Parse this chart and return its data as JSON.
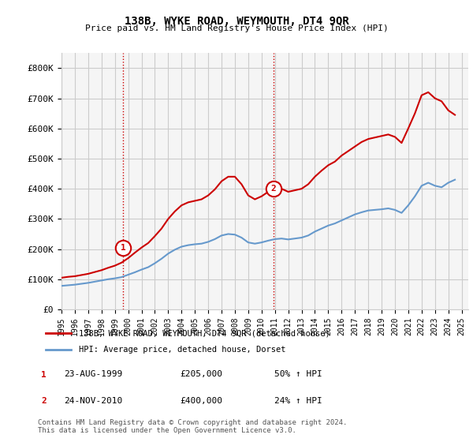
{
  "title": "138B, WYKE ROAD, WEYMOUTH, DT4 9QR",
  "subtitle": "Price paid vs. HM Land Registry's House Price Index (HPI)",
  "legend_line1": "138B, WYKE ROAD, WEYMOUTH, DT4 9QR (detached house)",
  "legend_line2": "HPI: Average price, detached house, Dorset",
  "footnote": "Contains HM Land Registry data © Crown copyright and database right 2024.\nThis data is licensed under the Open Government Licence v3.0.",
  "sale1_label": "1",
  "sale1_date": "23-AUG-1999",
  "sale1_price": "£205,000",
  "sale1_hpi": "50% ↑ HPI",
  "sale2_label": "2",
  "sale2_date": "24-NOV-2010",
  "sale2_price": "£400,000",
  "sale2_hpi": "24% ↑ HPI",
  "red_color": "#cc0000",
  "blue_color": "#6699cc",
  "sale_marker_color": "#cc0000",
  "grid_color": "#cccccc",
  "background_color": "#ffffff",
  "plot_bg_color": "#f5f5f5",
  "ylim": [
    0,
    850000
  ],
  "yticks": [
    0,
    100000,
    200000,
    300000,
    400000,
    500000,
    600000,
    700000,
    800000
  ],
  "ytick_labels": [
    "£0",
    "£100K",
    "£200K",
    "£300K",
    "£400K",
    "£500K",
    "£600K",
    "£700K",
    "£800K"
  ],
  "xmin": 1995.0,
  "xmax": 2025.5,
  "xtick_years": [
    1995,
    1996,
    1997,
    1998,
    1999,
    2000,
    2001,
    2002,
    2003,
    2004,
    2005,
    2006,
    2007,
    2008,
    2009,
    2010,
    2011,
    2012,
    2013,
    2014,
    2015,
    2016,
    2017,
    2018,
    2019,
    2020,
    2021,
    2022,
    2023,
    2024,
    2025
  ],
  "sale1_x": 1999.64,
  "sale1_y": 205000,
  "sale2_x": 2010.9,
  "sale2_y": 400000,
  "hpi_x": [
    1995.0,
    1995.5,
    1996.0,
    1996.5,
    1997.0,
    1997.5,
    1998.0,
    1998.5,
    1999.0,
    1999.5,
    2000.0,
    2000.5,
    2001.0,
    2001.5,
    2002.0,
    2002.5,
    2003.0,
    2003.5,
    2004.0,
    2004.5,
    2005.0,
    2005.5,
    2006.0,
    2006.5,
    2007.0,
    2007.5,
    2008.0,
    2008.5,
    2009.0,
    2009.5,
    2010.0,
    2010.5,
    2011.0,
    2011.5,
    2012.0,
    2012.5,
    2013.0,
    2013.5,
    2014.0,
    2014.5,
    2015.0,
    2015.5,
    2016.0,
    2016.5,
    2017.0,
    2017.5,
    2018.0,
    2018.5,
    2019.0,
    2019.5,
    2020.0,
    2020.5,
    2021.0,
    2021.5,
    2022.0,
    2022.5,
    2023.0,
    2023.5,
    2024.0,
    2024.5
  ],
  "hpi_y": [
    78000,
    80000,
    82000,
    85000,
    88000,
    92000,
    96000,
    100000,
    103000,
    107000,
    115000,
    123000,
    132000,
    140000,
    153000,
    168000,
    185000,
    198000,
    208000,
    213000,
    216000,
    218000,
    224000,
    233000,
    245000,
    250000,
    248000,
    238000,
    222000,
    218000,
    222000,
    228000,
    233000,
    235000,
    232000,
    235000,
    238000,
    245000,
    258000,
    268000,
    278000,
    285000,
    295000,
    305000,
    315000,
    322000,
    328000,
    330000,
    332000,
    335000,
    330000,
    320000,
    345000,
    375000,
    410000,
    420000,
    410000,
    405000,
    420000,
    430000
  ],
  "red_x": [
    1995.0,
    1995.5,
    1996.0,
    1996.5,
    1997.0,
    1997.5,
    1998.0,
    1998.5,
    1999.0,
    1999.5,
    2000.0,
    2000.5,
    2001.0,
    2001.5,
    2002.0,
    2002.5,
    2003.0,
    2003.5,
    2004.0,
    2004.5,
    2005.0,
    2005.5,
    2006.0,
    2006.5,
    2007.0,
    2007.5,
    2008.0,
    2008.5,
    2009.0,
    2009.5,
    2010.0,
    2010.5,
    2011.0,
    2011.5,
    2012.0,
    2012.5,
    2013.0,
    2013.5,
    2014.0,
    2014.5,
    2015.0,
    2015.5,
    2016.0,
    2016.5,
    2017.0,
    2017.5,
    2018.0,
    2018.5,
    2019.0,
    2019.5,
    2020.0,
    2020.5,
    2021.0,
    2021.5,
    2022.0,
    2022.5,
    2023.0,
    2023.5,
    2024.0,
    2024.5
  ],
  "red_y": [
    105000,
    108000,
    110000,
    114000,
    118000,
    124000,
    130000,
    138000,
    145000,
    155000,
    170000,
    188000,
    205000,
    220000,
    243000,
    268000,
    300000,
    325000,
    345000,
    355000,
    360000,
    365000,
    378000,
    398000,
    425000,
    440000,
    440000,
    415000,
    378000,
    365000,
    375000,
    390000,
    398000,
    400000,
    390000,
    395000,
    400000,
    415000,
    440000,
    460000,
    478000,
    490000,
    510000,
    525000,
    540000,
    555000,
    565000,
    570000,
    575000,
    580000,
    572000,
    552000,
    600000,
    650000,
    710000,
    720000,
    700000,
    690000,
    660000,
    645000
  ]
}
